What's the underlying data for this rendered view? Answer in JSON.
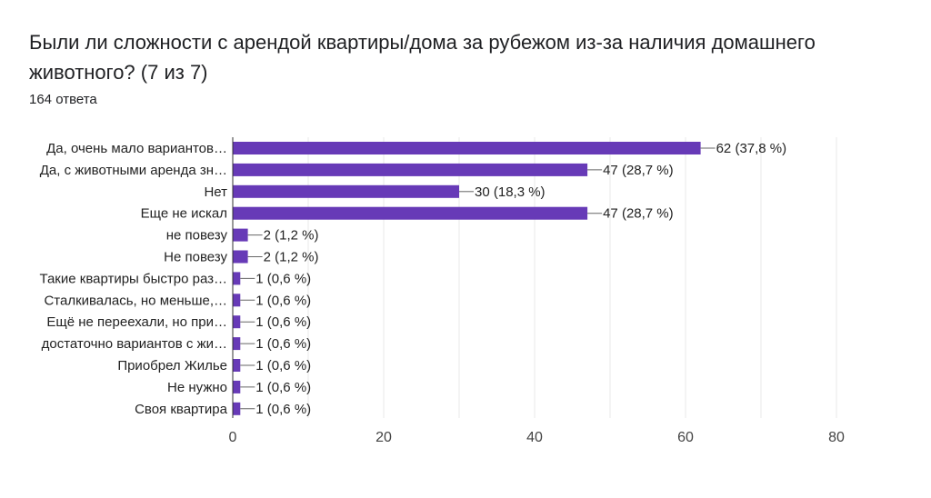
{
  "header": {
    "title": "Были ли сложности с арендой квартиры/дома за рубежом из-за наличия домашнего животного?  (7 из 7)",
    "responses": "164 ответа"
  },
  "chart_data": {
    "type": "bar",
    "orientation": "horizontal",
    "title": "Были ли сложности с арендой квартиры/дома за рубежом из-за наличия домашнего животного?  (7 из 7)",
    "subtitle": "164 ответа",
    "categories": [
      "Да, очень мало вариантов…",
      "Да, с животными аренда зн…",
      "Нет",
      "Еще не искал",
      "не повезу",
      "Не повезу",
      "Такие квартиры быстро раз…",
      "Сталкивалась, но меньше,…",
      "Ещё не переехали, но при…",
      "достаточно вариантов с жи…",
      "Приобрел Жилье",
      "Не нужно",
      "Своя квартира"
    ],
    "values": [
      62,
      47,
      30,
      47,
      2,
      2,
      1,
      1,
      1,
      1,
      1,
      1,
      1
    ],
    "data_labels": [
      "62 (37,8 %)",
      "47 (28,7 %)",
      "30 (18,3 %)",
      "47 (28,7 %)",
      "2 (1,2 %)",
      "2 (1,2 %)",
      "1 (0,6 %)",
      "1 (0,6 %)",
      "1 (0,6 %)",
      "1 (0,6 %)",
      "1 (0,6 %)",
      "1 (0,6 %)",
      "1 (0,6 %)"
    ],
    "xlim": [
      0,
      80
    ],
    "xticks": [
      0,
      20,
      40,
      60,
      80
    ],
    "xtick_labels": [
      "0",
      "20",
      "40",
      "60",
      "80"
    ],
    "grid": true,
    "bar_color": "#673ab7",
    "grid_color": "#e8e8e8",
    "axis_color": "#333333"
  }
}
